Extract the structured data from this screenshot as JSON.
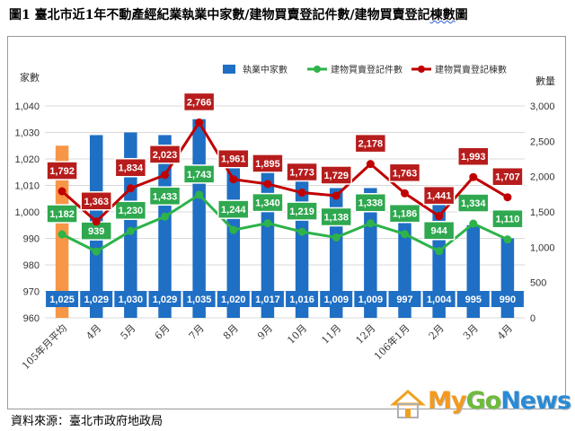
{
  "header": {
    "title_prefix": "圖1 臺北市近1年不動產經紀業執業中家數/建物買賣登記件數/建物買賣登記",
    "title_link": "棟數",
    "title_suffix": "圖"
  },
  "footer": {
    "source": "資料來源：臺北市政府地政局"
  },
  "branding": {
    "logo_my": "My",
    "logo_go": "Go",
    "logo_news": "News"
  },
  "colors": {
    "bar": "#1f6fc4",
    "bar_highlight": "#f79646",
    "count_line": "#2db34a",
    "count_label_bg": "#2fa84f",
    "building_line": "#c00000",
    "building_label_bg": "#b71c1c",
    "logo_icon": "#f0a020"
  },
  "chart_data": {
    "type": "bar+line",
    "categories": [
      "105年月平均",
      "4月",
      "5月",
      "6月",
      "7月",
      "8月",
      "9月",
      "10月",
      "11月",
      "12月",
      "106年1月",
      "2月",
      "3月",
      "4月"
    ],
    "left_axis": {
      "label": "家數",
      "range": [
        960,
        1040
      ],
      "ticks": [
        "960",
        "970",
        "980",
        "990",
        "1,000",
        "1,010",
        "1,020",
        "1,030",
        "1,040"
      ]
    },
    "right_axis": {
      "label": "數量",
      "range": [
        0,
        3000
      ],
      "ticks": [
        "0",
        "500",
        "1,000",
        "1,500",
        "2,000",
        "2,500",
        "3,000"
      ]
    },
    "grid": true,
    "legend_position": "top-right",
    "series": [
      {
        "name": "執業中家數",
        "kind": "bar",
        "axis": "left",
        "values": [
          1025,
          1029,
          1030,
          1029,
          1035,
          1020,
          1017,
          1016,
          1009,
          1009,
          997,
          1004,
          995,
          990
        ],
        "labels": [
          "1,025",
          "1,029",
          "1,030",
          "1,029",
          "1,035",
          "1,020",
          "1,017",
          "1,016",
          "1,009",
          "1,009",
          "997",
          "1,004",
          "995",
          "990"
        ]
      },
      {
        "name": "建物買賣登記件數",
        "kind": "line",
        "axis": "right",
        "values": [
          1182,
          939,
          1230,
          1433,
          1743,
          1244,
          1340,
          1219,
          1138,
          1338,
          1186,
          944,
          1334,
          1110
        ],
        "labels": [
          "1,182",
          "939",
          "1,230",
          "1,433",
          "1,743",
          "1,244",
          "1,340",
          "1,219",
          "1,138",
          "1,338",
          "1,186",
          "944",
          "1,334",
          "1,110"
        ]
      },
      {
        "name": "建物買賣登記棟數",
        "kind": "line",
        "axis": "right",
        "values": [
          1792,
          1363,
          1834,
          2023,
          2766,
          1961,
          1895,
          1773,
          1729,
          2178,
          1763,
          1441,
          1993,
          1707
        ],
        "labels": [
          "1,792",
          "1,363",
          "1,834",
          "2,023",
          "2,766",
          "1,961",
          "1,895",
          "1,773",
          "1,729",
          "2,178",
          "1,763",
          "1,441",
          "1,993",
          "1,707"
        ]
      }
    ]
  }
}
